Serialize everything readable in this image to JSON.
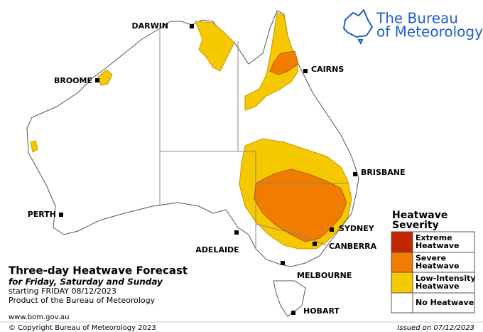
{
  "header": {
    "logo_lines": [
      "The Bureau",
      "of Meteorology"
    ]
  },
  "cities": [
    "DARWIN",
    "CAIRNS",
    "BROOME",
    "BRISBANE",
    "PERTH",
    "ADELAIDE",
    "SYDNEY",
    "CANBERRA",
    "MELBOURNE",
    "HOBART"
  ],
  "info": {
    "title": "Three-day Heatwave Forecast",
    "subtitle": "for Friday, Saturday and Sunday",
    "starting": "starting FRIDAY 08/12/2023",
    "product": "Product of the Bureau of Meteorology",
    "website": "www.bom.gov.au"
  },
  "footer": {
    "copyright": "© Copyright Bureau of Meteorology 2023",
    "issued": "Issued on 07/12/2023"
  },
  "legend": {
    "title_lines": [
      "Heatwave",
      "Severity"
    ],
    "items": [
      {
        "label_lines": [
          "Extreme",
          "Heatwave"
        ],
        "color": "#c02800"
      },
      {
        "label_lines": [
          "Severe",
          "Heatwave"
        ],
        "color": "#f07d00"
      },
      {
        "label_lines": [
          "Low-Intensity",
          "Heatwave"
        ],
        "color": "#f5c800"
      },
      {
        "label_lines": [
          "No Heatwave"
        ],
        "color": "#ffffff"
      }
    ]
  }
}
